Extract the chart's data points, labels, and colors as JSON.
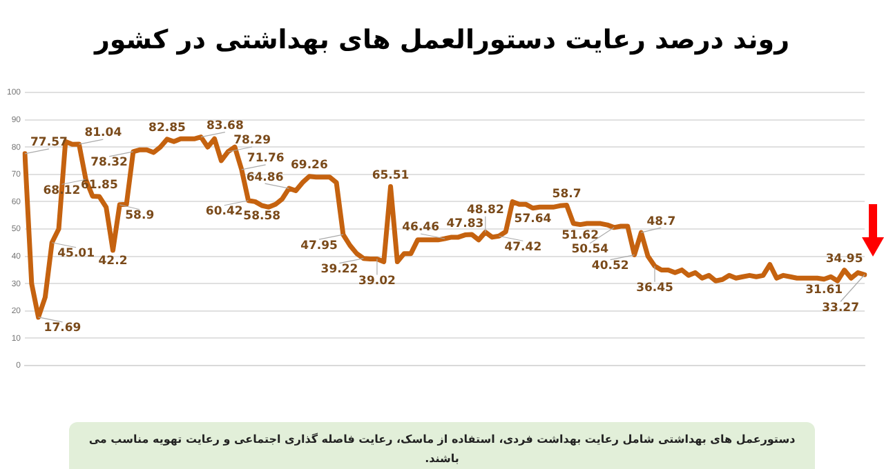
{
  "chart_data": {
    "type": "line",
    "title": "روند درصد رعایت دستورالعمل های بهداشتی در کشور",
    "annotations": [
      "دستورعمل های بهداشتی شامل رعایت بهداشت فردی، استفاده از ماسک، رعایت فاصله گذاری اجتماعی و رعایت تهویه مناسب می باشند."
    ],
    "categories": [
      null,
      null,
      null,
      null,
      null,
      null,
      null,
      null,
      null,
      null,
      null,
      null,
      null,
      null,
      null,
      null,
      null,
      null,
      null,
      null,
      null,
      null,
      null,
      null,
      null,
      null,
      null,
      null,
      null,
      null,
      null,
      null,
      null,
      null,
      null,
      null,
      null,
      null,
      null,
      null,
      null,
      null,
      null,
      null,
      null,
      null,
      null,
      null,
      null,
      null,
      null,
      null,
      null,
      null,
      null,
      null,
      null,
      null,
      null,
      null,
      null,
      null,
      null,
      null,
      null,
      null,
      null,
      null,
      null,
      null,
      null,
      null,
      null,
      null,
      null,
      null,
      null,
      null,
      null,
      null,
      null,
      null,
      null,
      null,
      null,
      null,
      null,
      null,
      null,
      null,
      null,
      null,
      null,
      null,
      null,
      null,
      null,
      null,
      null,
      null,
      null,
      null,
      null,
      null,
      null,
      null,
      null,
      null,
      null,
      null,
      null,
      null,
      null,
      null,
      null,
      null,
      null,
      null,
      null,
      null,
      null,
      null,
      null,
      null,
      null
    ],
    "series": [
      {
        "color": "#c5620f",
        "values": [
          77.57,
          30,
          17.69,
          25,
          45.01,
          50,
          82,
          81,
          81.04,
          68.12,
          62,
          61.85,
          58,
          42.2,
          58.9,
          59,
          78.32,
          79,
          79,
          78,
          80,
          82.85,
          82,
          83,
          83,
          83,
          83.68,
          80,
          83,
          75,
          78.29,
          80,
          71.76,
          60.42,
          60,
          58.58,
          58,
          59,
          61,
          64.86,
          64,
          67,
          69.26,
          69,
          69,
          69,
          67,
          47.95,
          44,
          41,
          39.22,
          39,
          39.02,
          38,
          65.51,
          38,
          41,
          41,
          46,
          46,
          46,
          46,
          46.46,
          47,
          47,
          47.83,
          48,
          46,
          48.82,
          47,
          47.42,
          49,
          60,
          59,
          59,
          57.64,
          58,
          58,
          58,
          58.5,
          58.7,
          52,
          51.62,
          52,
          52,
          52,
          51.5,
          50.54,
          51,
          51,
          40.52,
          48.7,
          40,
          36.45,
          35,
          35,
          34,
          35,
          33,
          34,
          32,
          33,
          31,
          31.5,
          33,
          32,
          32.5,
          33,
          32.5,
          33,
          37,
          32,
          33,
          32.5,
          32,
          32,
          32,
          32,
          31.61,
          32.5,
          31,
          34.95,
          32,
          34,
          33.27
        ],
        "value_labels": [
          "77.57",
          null,
          "17.69",
          null,
          "45.01",
          null,
          null,
          null,
          "81.04",
          "68.12",
          null,
          "61.85",
          null,
          "42.2",
          "58.9",
          null,
          "78.32",
          null,
          null,
          null,
          null,
          "82.85",
          null,
          null,
          null,
          null,
          "83.68",
          null,
          null,
          null,
          "78.29",
          null,
          "71.76",
          "60.42",
          null,
          "58.58",
          null,
          null,
          null,
          "64.86",
          null,
          null,
          "69.26",
          null,
          null,
          null,
          null,
          "47.95",
          null,
          null,
          "39.22",
          null,
          "39.02",
          null,
          "65.51",
          null,
          null,
          null,
          null,
          null,
          null,
          null,
          "46.46",
          null,
          null,
          "47.83",
          null,
          null,
          "48.82",
          null,
          "47.42",
          null,
          null,
          null,
          null,
          "57.64",
          null,
          null,
          null,
          null,
          "58.7",
          null,
          "51.62",
          null,
          null,
          null,
          null,
          "50.54",
          null,
          null,
          "40.52",
          "48.7",
          null,
          "36.45",
          null,
          null,
          null,
          null,
          null,
          null,
          null,
          null,
          null,
          null,
          null,
          null,
          null,
          null,
          null,
          null,
          null,
          null,
          null,
          null,
          null,
          null,
          null,
          null,
          "31.61",
          null,
          null,
          "34.95",
          null,
          null,
          "33.27"
        ]
      }
    ],
    "ylim": [
      0,
      100
    ],
    "yticks": [
      0,
      10,
      20,
      30,
      40,
      50,
      60,
      70,
      80,
      90,
      100
    ],
    "grid": "y",
    "legend": false,
    "tick_labels": "y",
    "marker": "none",
    "line_style": "solid"
  }
}
